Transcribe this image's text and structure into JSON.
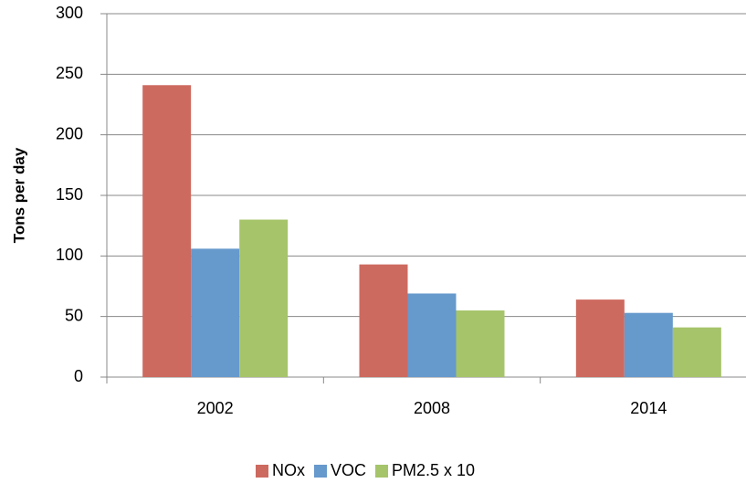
{
  "chart_data": {
    "type": "bar",
    "y_label": "Tons per day",
    "categories": [
      "2002",
      "2008",
      "2014"
    ],
    "series": [
      {
        "name": "NOx",
        "color": "#cd6a5f",
        "values": [
          241,
          93,
          64
        ]
      },
      {
        "name": "VOC",
        "color": "#6699cc",
        "values": [
          106,
          69,
          53
        ]
      },
      {
        "name": "PM2.5 x 10",
        "color": "#a6c46a",
        "values": [
          130,
          55,
          41
        ]
      }
    ],
    "ylim": [
      0,
      300
    ],
    "yticks": [
      0,
      50,
      100,
      150,
      200,
      250,
      300
    ],
    "grid": true,
    "legend": "bottom"
  }
}
